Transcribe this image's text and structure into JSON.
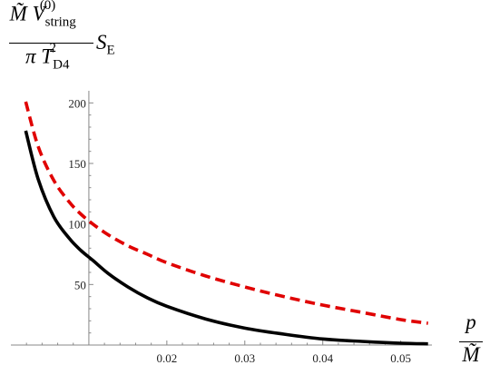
{
  "chart_data": {
    "type": "line",
    "y_label": {
      "numerator": "M̃ V",
      "numerator_sub": "string",
      "numerator_sup": "(0)",
      "denominator": "π T",
      "denominator_sub": "D4",
      "denominator_sup": "2",
      "trailing": "S",
      "trailing_sub": "E"
    },
    "x_label": {
      "numerator": "p",
      "denominator": "M̃"
    },
    "xlim": [
      0.0,
      0.054
    ],
    "ylim": [
      0,
      210
    ],
    "x_ticks": [
      {
        "value": 0.02,
        "label": "0.02"
      },
      {
        "value": 0.03,
        "label": "0.03"
      },
      {
        "value": 0.04,
        "label": "0.04"
      },
      {
        "value": 0.05,
        "label": "0.05"
      }
    ],
    "y_ticks": [
      {
        "value": 50,
        "label": "50"
      },
      {
        "value": 100,
        "label": "100"
      },
      {
        "value": 150,
        "label": "150"
      },
      {
        "value": 200,
        "label": "200"
      }
    ],
    "grid": false,
    "series": [
      {
        "style": "solid",
        "color": "#000000",
        "x": [
          0.0019,
          0.0035,
          0.0055,
          0.0075,
          0.009,
          0.0105,
          0.0125,
          0.015,
          0.0175,
          0.02,
          0.025,
          0.03,
          0.035,
          0.04,
          0.045,
          0.05,
          0.0535
        ],
        "y": [
          177,
          137,
          106,
          88,
          78,
          70,
          59,
          48,
          39,
          32,
          21.5,
          14,
          9,
          5,
          3,
          1.5,
          1
        ]
      },
      {
        "style": "dashed",
        "color": "#e00000",
        "x": [
          0.0019,
          0.0035,
          0.0055,
          0.0075,
          0.009,
          0.0105,
          0.0125,
          0.015,
          0.0175,
          0.02,
          0.025,
          0.03,
          0.035,
          0.04,
          0.045,
          0.05,
          0.0535
        ],
        "y": [
          201,
          164,
          136,
          118,
          108,
          100,
          91,
          82,
          75,
          68,
          57,
          48,
          40,
          33,
          27,
          21,
          18
        ]
      }
    ]
  }
}
